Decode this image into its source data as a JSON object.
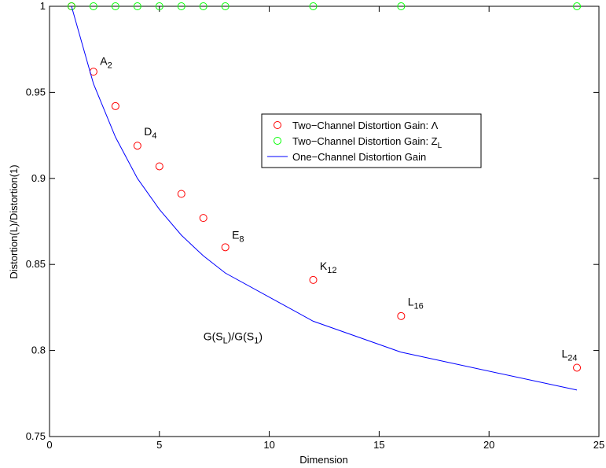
{
  "chart_data": {
    "type": "scatter",
    "xlabel": "Dimension",
    "ylabel": "Distortion(L)/Distortion(1)",
    "xlim": [
      0,
      25
    ],
    "ylim": [
      0.75,
      1
    ],
    "xticks": [
      0,
      5,
      10,
      15,
      20,
      25
    ],
    "yticks": [
      0.75,
      0.8,
      0.85,
      0.9,
      0.95,
      1
    ],
    "xtick_labels": [
      "0",
      "5",
      "10",
      "15",
      "20",
      "25"
    ],
    "ytick_labels": [
      "0.75",
      "0.8",
      "0.85",
      "0.9",
      "0.95",
      "1"
    ],
    "grid": false,
    "legend_position": "center-right",
    "series": [
      {
        "name": "Two−Channel Distortion Gain: Λ",
        "kind": "marker",
        "color": "#ff0000",
        "x": [
          1,
          2,
          3,
          4,
          5,
          6,
          7,
          8,
          12,
          16,
          24
        ],
        "y": [
          1.0,
          0.962,
          0.942,
          0.919,
          0.907,
          0.891,
          0.877,
          0.86,
          0.841,
          0.82,
          0.79
        ]
      },
      {
        "name": "Two−Channel Distortion Gain: Z",
        "name_subscript": "L",
        "kind": "marker",
        "color": "#00ff00",
        "x": [
          1,
          2,
          3,
          4,
          5,
          6,
          7,
          8,
          12,
          16,
          24
        ],
        "y": [
          1,
          1,
          1,
          1,
          1,
          1,
          1,
          1,
          1,
          1,
          1
        ]
      },
      {
        "name": "One−Channel Distortion Gain",
        "kind": "line",
        "color": "#0000ff",
        "x": [
          1,
          2,
          3,
          4,
          5,
          6,
          7,
          8,
          12,
          16,
          24
        ],
        "y": [
          1.0,
          0.955,
          0.924,
          0.9,
          0.882,
          0.867,
          0.855,
          0.845,
          0.817,
          0.799,
          0.777
        ]
      }
    ],
    "annotations": [
      {
        "label": "A",
        "sub": "2",
        "x": 2.3,
        "y": 0.966
      },
      {
        "label": "D",
        "sub": "4",
        "x": 4.3,
        "y": 0.925
      },
      {
        "label": "E",
        "sub": "8",
        "x": 8.3,
        "y": 0.865
      },
      {
        "label": "K",
        "sub": "12",
        "x": 12.3,
        "y": 0.847
      },
      {
        "label": "L",
        "sub": "16",
        "x": 16.3,
        "y": 0.826
      },
      {
        "label": "L",
        "sub": "24",
        "x": 23.3,
        "y": 0.796
      },
      {
        "label": "G(S",
        "parts": [
          [
            "G(S",
            ""
          ],
          [
            "L",
            "sub"
          ],
          [
            ")/G(S",
            ""
          ],
          [
            "1",
            "sub"
          ],
          [
            ")",
            ""
          ]
        ],
        "x": 7,
        "y": 0.806
      }
    ]
  }
}
